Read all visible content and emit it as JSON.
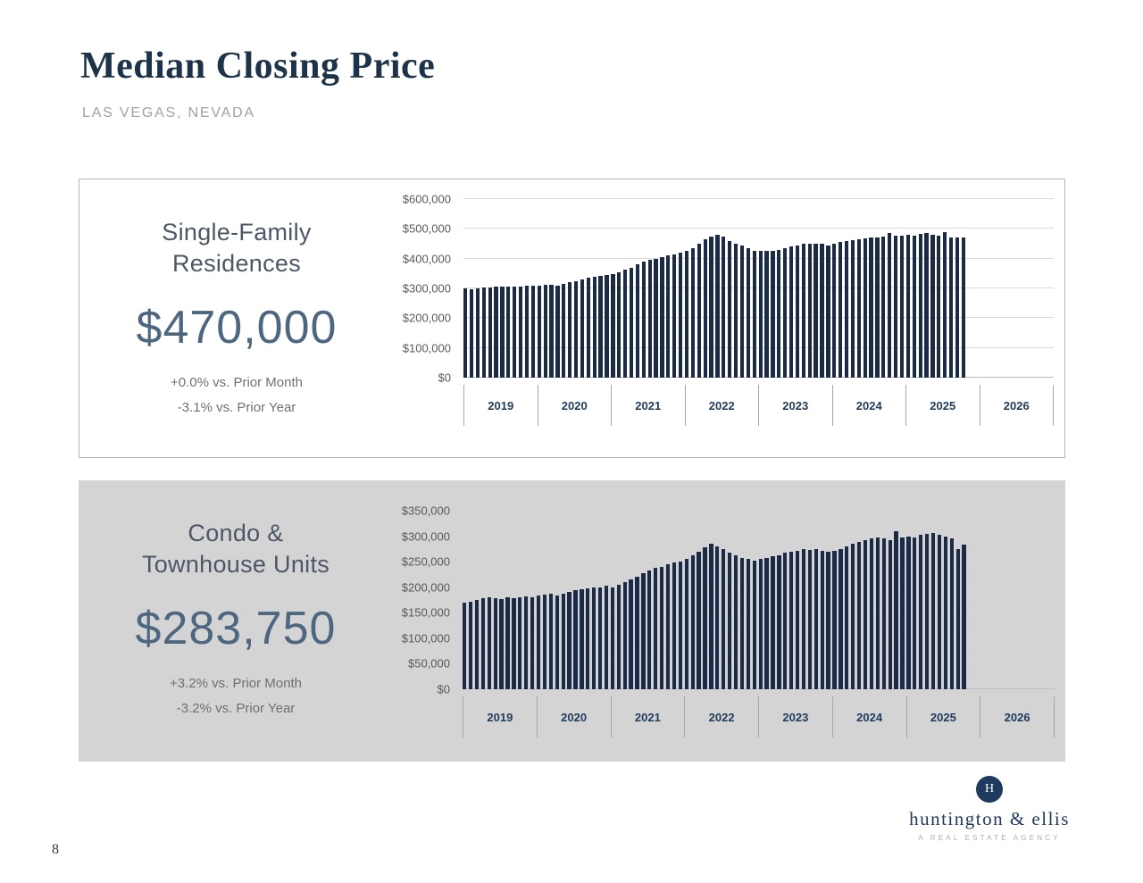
{
  "header": {
    "title": "Median Closing Price",
    "subtitle": "LAS VEGAS, NEVADA"
  },
  "page_number": "8",
  "panels": [
    {
      "heading": "Single-Family\nResidences",
      "price": "$470,000",
      "stat_month": "+0.0% vs. Prior Month",
      "stat_year": "-3.1% vs. Prior Year"
    },
    {
      "heading": "Condo &\nTownhouse Units",
      "price": "$283,750",
      "stat_month": "+3.2% vs. Prior Month",
      "stat_year": "-3.2% vs. Prior Year"
    }
  ],
  "logo": {
    "monogram": "H",
    "name": "huntington & ellis",
    "tagline": "A REAL ESTATE AGENCY"
  },
  "colors": {
    "bar": "#1b2a47",
    "navy": "#1e3a5f",
    "panel_gray": "#d4d4d4",
    "gridline": "#d9d9d9"
  },
  "chart_data": [
    {
      "type": "bar",
      "title": "Single-Family Residences Median Closing Price",
      "xlabel": "",
      "ylabel": "",
      "frequency": "monthly",
      "start": "2019-01",
      "x_tick_labels": [
        "2019",
        "2020",
        "2021",
        "2022",
        "2023",
        "2024",
        "2025",
        "2026"
      ],
      "ylim": [
        0,
        600000
      ],
      "y_ticks": [
        0,
        100000,
        200000,
        300000,
        400000,
        500000,
        600000
      ],
      "grid": true,
      "legend": "none",
      "values": [
        300000,
        298000,
        300000,
        302000,
        303000,
        305000,
        305000,
        306000,
        305000,
        307000,
        308000,
        310000,
        310000,
        312000,
        313000,
        310000,
        315000,
        320000,
        325000,
        330000,
        335000,
        340000,
        342000,
        345000,
        348000,
        355000,
        363000,
        370000,
        380000,
        390000,
        395000,
        400000,
        405000,
        410000,
        415000,
        420000,
        425000,
        435000,
        450000,
        465000,
        475000,
        480000,
        475000,
        460000,
        450000,
        445000,
        435000,
        425000,
        425000,
        425000,
        426000,
        430000,
        435000,
        440000,
        445000,
        450000,
        450000,
        450000,
        449000,
        445000,
        450000,
        455000,
        459000,
        462000,
        465000,
        468000,
        470000,
        472000,
        475000,
        485000,
        476000,
        478000,
        480000,
        478000,
        483000,
        485000,
        480000,
        476000,
        488000,
        470000,
        470000,
        470000
      ]
    },
    {
      "type": "bar",
      "title": "Condo & Townhouse Units Median Closing Price",
      "xlabel": "",
      "ylabel": "",
      "frequency": "monthly",
      "start": "2019-01",
      "x_tick_labels": [
        "2019",
        "2020",
        "2021",
        "2022",
        "2023",
        "2024",
        "2025",
        "2026"
      ],
      "ylim": [
        0,
        350000
      ],
      "y_ticks": [
        0,
        50000,
        100000,
        150000,
        200000,
        250000,
        300000,
        350000
      ],
      "grid": true,
      "legend": "none",
      "values": [
        170000,
        172000,
        175000,
        178000,
        180000,
        178000,
        177000,
        180000,
        178000,
        180000,
        182000,
        180000,
        183000,
        185000,
        187000,
        183000,
        188000,
        190000,
        195000,
        196000,
        198000,
        200000,
        200000,
        203000,
        200000,
        205000,
        210000,
        215000,
        220000,
        228000,
        232000,
        238000,
        240000,
        245000,
        248000,
        250000,
        255000,
        262000,
        270000,
        278000,
        285000,
        280000,
        275000,
        268000,
        262000,
        258000,
        255000,
        252000,
        255000,
        258000,
        260000,
        263000,
        267000,
        270000,
        272000,
        275000,
        273000,
        275000,
        272000,
        270000,
        272000,
        275000,
        280000,
        285000,
        288000,
        292000,
        295000,
        298000,
        296000,
        293000,
        310000,
        298000,
        300000,
        297000,
        302000,
        304000,
        306000,
        303000,
        300000,
        296000,
        275000,
        283750
      ]
    }
  ]
}
